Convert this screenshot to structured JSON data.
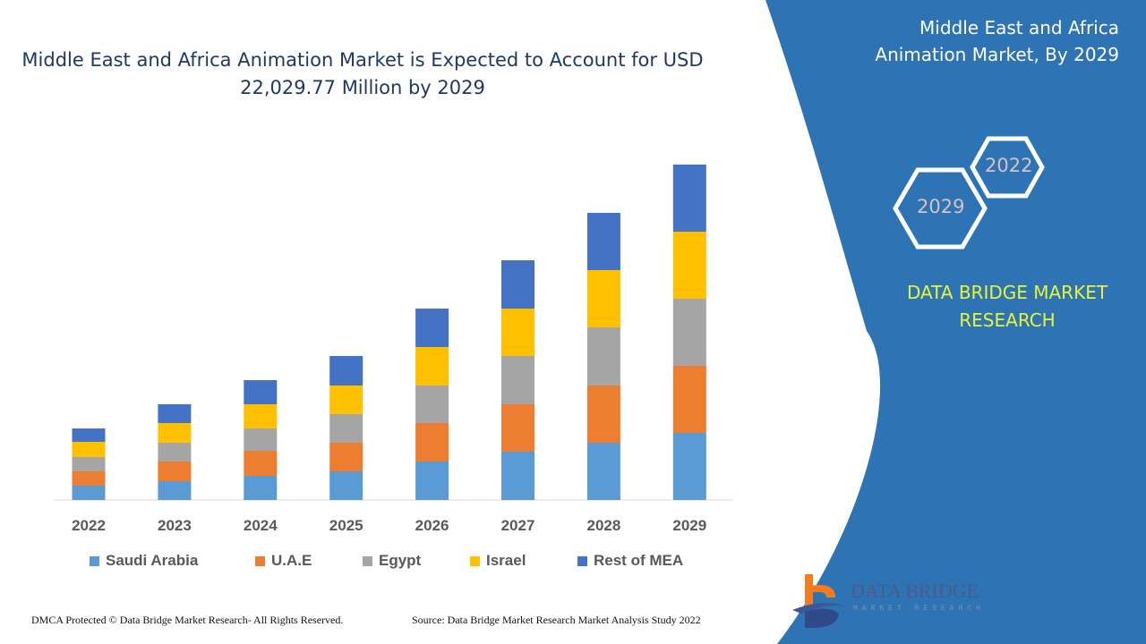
{
  "title": "Middle East and Africa Animation Market is Expected to Account for USD 22,029.77 Million by 2029",
  "side_panel": {
    "title": "Middle East and Africa Animation Market, By 2029",
    "hex_years": [
      "2022",
      "2029"
    ],
    "brand": "DATA BRIDGE MARKET RESEARCH",
    "color": "#2e74b5"
  },
  "footer": {
    "left": "DMCA Protected © Data Bridge Market Research- All Rights Reserved.",
    "right": "Source: Data Bridge Market Research Market Analysis Study 2022"
  },
  "logo": {
    "name": "DATA BRIDGE",
    "sub": "MARKET RESEARCH"
  },
  "chart_data": {
    "type": "bar",
    "stacked": true,
    "title": "",
    "xlabel": "",
    "ylabel": "",
    "y_axis_shown": false,
    "grid": false,
    "legend_position": "bottom",
    "categories": [
      "2022",
      "2023",
      "2024",
      "2025",
      "2026",
      "2027",
      "2028",
      "2029"
    ],
    "series": [
      {
        "name": "Saudi Arabia",
        "color": "#5b9bd5",
        "values": [
          16,
          21,
          27,
          32,
          43,
          54,
          64,
          75
        ]
      },
      {
        "name": "U.A.E",
        "color": "#ed7d31",
        "values": [
          16,
          22,
          28,
          32,
          43,
          53,
          64,
          75
        ]
      },
      {
        "name": "Egypt",
        "color": "#a5a5a5",
        "values": [
          16,
          21,
          25,
          32,
          42,
          54,
          65,
          75
        ]
      },
      {
        "name": "Israel",
        "color": "#ffc000",
        "values": [
          17,
          22,
          27,
          32,
          43,
          53,
          64,
          75
        ]
      },
      {
        "name": "Rest of MEA",
        "color": "#4472c4",
        "values": [
          15,
          21,
          27,
          33,
          43,
          54,
          64,
          75
        ]
      }
    ]
  }
}
